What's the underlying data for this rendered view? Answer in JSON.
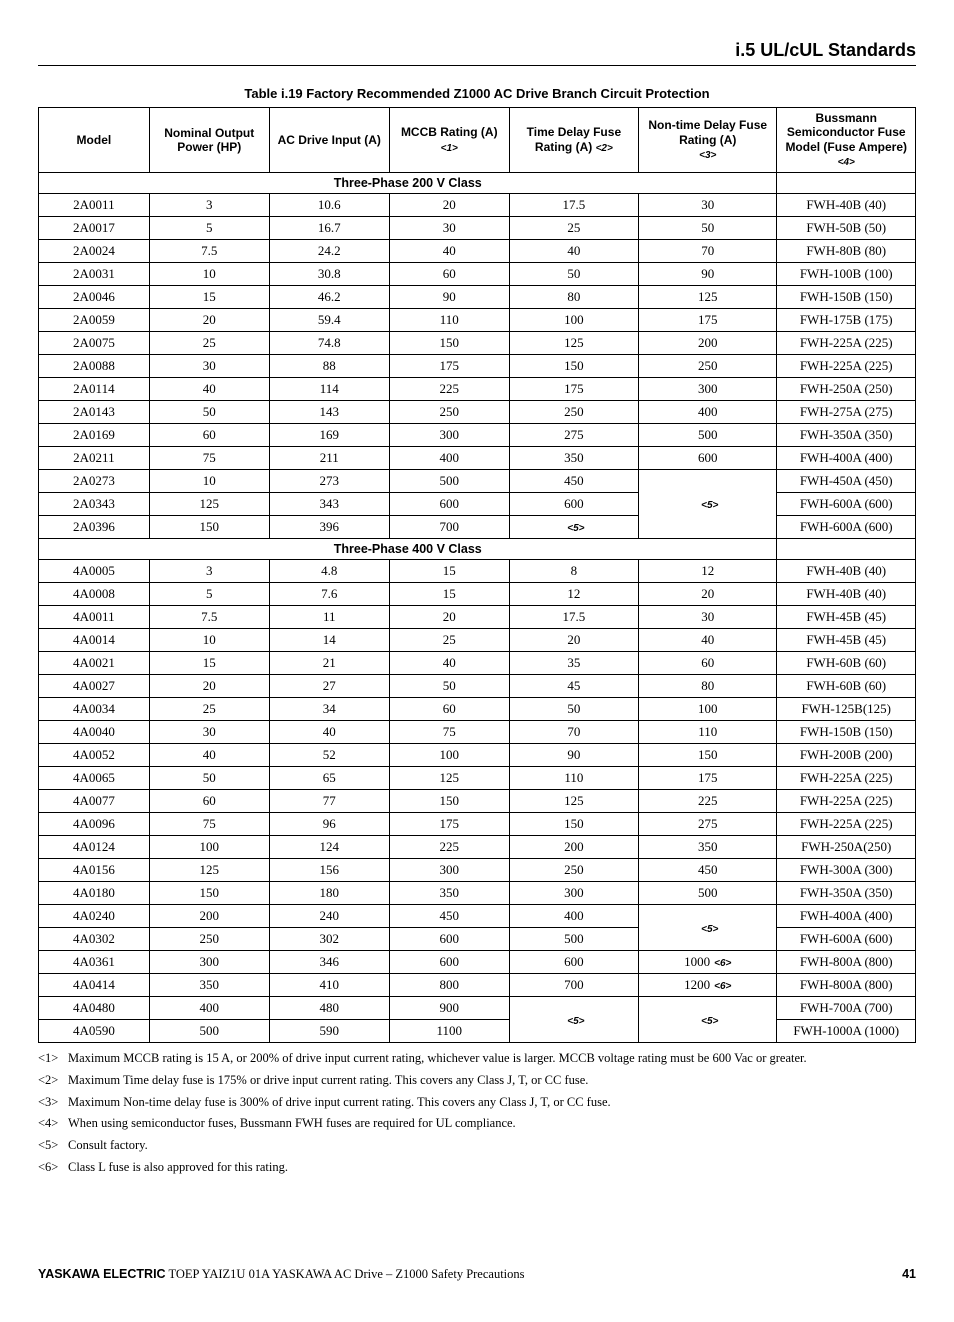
{
  "header": {
    "section": "i.5 UL/cUL Standards"
  },
  "table": {
    "caption": "Table i.19  Factory Recommended Z1000 AC Drive Branch Circuit Protection",
    "columns": {
      "model": "Model",
      "hp": "Nominal Output Power (HP)",
      "drive_input": "AC Drive Input (A)",
      "mccb": "MCCB Rating (A)",
      "mccb_ref": "<1>",
      "td_fuse": "Time Delay Fuse Rating (A)",
      "td_ref": "<2>",
      "ntd_fuse": "Non-time Delay Fuse Rating (A)",
      "ntd_ref": "<3>",
      "sc_fuse": "Bussmann Semiconductor Fuse Model (Fuse Ampere)",
      "sc_ref": "<4>"
    },
    "class_headers": {
      "c200": "Three-Phase 200 V Class",
      "c400": "Three-Phase 400 V Class"
    },
    "refs": {
      "r5": "<5>",
      "r6": "<6>"
    },
    "rows_200": [
      {
        "model": "2A0011",
        "hp": "3",
        "in": "10.6",
        "mccb": "20",
        "td": "17.5",
        "ntd": "30",
        "sc": "FWH-40B (40)"
      },
      {
        "model": "2A0017",
        "hp": "5",
        "in": "16.7",
        "mccb": "30",
        "td": "25",
        "ntd": "50",
        "sc": "FWH-50B (50)"
      },
      {
        "model": "2A0024",
        "hp": "7.5",
        "in": "24.2",
        "mccb": "40",
        "td": "40",
        "ntd": "70",
        "sc": "FWH-80B (80)"
      },
      {
        "model": "2A0031",
        "hp": "10",
        "in": "30.8",
        "mccb": "60",
        "td": "50",
        "ntd": "90",
        "sc": "FWH-100B (100)"
      },
      {
        "model": "2A0046",
        "hp": "15",
        "in": "46.2",
        "mccb": "90",
        "td": "80",
        "ntd": "125",
        "sc": "FWH-150B (150)"
      },
      {
        "model": "2A0059",
        "hp": "20",
        "in": "59.4",
        "mccb": "110",
        "td": "100",
        "ntd": "175",
        "sc": "FWH-175B (175)"
      },
      {
        "model": "2A0075",
        "hp": "25",
        "in": "74.8",
        "mccb": "150",
        "td": "125",
        "ntd": "200",
        "sc": "FWH-225A (225)"
      },
      {
        "model": "2A0088",
        "hp": "30",
        "in": "88",
        "mccb": "175",
        "td": "150",
        "ntd": "250",
        "sc": "FWH-225A (225)"
      },
      {
        "model": "2A0114",
        "hp": "40",
        "in": "114",
        "mccb": "225",
        "td": "175",
        "ntd": "300",
        "sc": "FWH-250A (250)"
      },
      {
        "model": "2A0143",
        "hp": "50",
        "in": "143",
        "mccb": "250",
        "td": "250",
        "ntd": "400",
        "sc": "FWH-275A (275)"
      },
      {
        "model": "2A0169",
        "hp": "60",
        "in": "169",
        "mccb": "300",
        "td": "275",
        "ntd": "500",
        "sc": "FWH-350A (350)"
      },
      {
        "model": "2A0211",
        "hp": "75",
        "in": "211",
        "mccb": "400",
        "td": "350",
        "ntd": "600",
        "sc": "FWH-400A (400)"
      },
      {
        "model": "2A0273",
        "hp": "10",
        "in": "273",
        "mccb": "500",
        "td": "450",
        "ntd": "",
        "sc": "FWH-450A (450)"
      },
      {
        "model": "2A0343",
        "hp": "125",
        "in": "343",
        "mccb": "600",
        "td": "600",
        "ntd": "",
        "sc": "FWH-600A (600)"
      },
      {
        "model": "2A0396",
        "hp": "150",
        "in": "396",
        "mccb": "700",
        "td": "",
        "td_ref": "<5>",
        "ntd": "",
        "sc": "FWH-600A (600)"
      }
    ],
    "rows_400": [
      {
        "model": "4A0005",
        "hp": "3",
        "in": "4.8",
        "mccb": "15",
        "td": "8",
        "ntd": "12",
        "sc": "FWH-40B (40)"
      },
      {
        "model": "4A0008",
        "hp": "5",
        "in": "7.6",
        "mccb": "15",
        "td": "12",
        "ntd": "20",
        "sc": "FWH-40B (40)"
      },
      {
        "model": "4A0011",
        "hp": "7.5",
        "in": "11",
        "mccb": "20",
        "td": "17.5",
        "ntd": "30",
        "sc": "FWH-45B (45)"
      },
      {
        "model": "4A0014",
        "hp": "10",
        "in": "14",
        "mccb": "25",
        "td": "20",
        "ntd": "40",
        "sc": "FWH-45B (45)"
      },
      {
        "model": "4A0021",
        "hp": "15",
        "in": "21",
        "mccb": "40",
        "td": "35",
        "ntd": "60",
        "sc": "FWH-60B (60)"
      },
      {
        "model": "4A0027",
        "hp": "20",
        "in": "27",
        "mccb": "50",
        "td": "45",
        "ntd": "80",
        "sc": "FWH-60B (60)"
      },
      {
        "model": "4A0034",
        "hp": "25",
        "in": "34",
        "mccb": "60",
        "td": "50",
        "ntd": "100",
        "sc": "FWH-125B(125)"
      },
      {
        "model": "4A0040",
        "hp": "30",
        "in": "40",
        "mccb": "75",
        "td": "70",
        "ntd": "110",
        "sc": "FWH-150B (150)"
      },
      {
        "model": "4A0052",
        "hp": "40",
        "in": "52",
        "mccb": "100",
        "td": "90",
        "ntd": "150",
        "sc": "FWH-200B (200)"
      },
      {
        "model": "4A0065",
        "hp": "50",
        "in": "65",
        "mccb": "125",
        "td": "110",
        "ntd": "175",
        "sc": "FWH-225A (225)"
      },
      {
        "model": "4A0077",
        "hp": "60",
        "in": "77",
        "mccb": "150",
        "td": "125",
        "ntd": "225",
        "sc": "FWH-225A (225)"
      },
      {
        "model": "4A0096",
        "hp": "75",
        "in": "96",
        "mccb": "175",
        "td": "150",
        "ntd": "275",
        "sc": "FWH-225A (225)"
      },
      {
        "model": "4A0124",
        "hp": "100",
        "in": "124",
        "mccb": "225",
        "td": "200",
        "ntd": "350",
        "sc": "FWH-250A(250)"
      },
      {
        "model": "4A0156",
        "hp": "125",
        "in": "156",
        "mccb": "300",
        "td": "250",
        "ntd": "450",
        "sc": "FWH-300A (300)"
      },
      {
        "model": "4A0180",
        "hp": "150",
        "in": "180",
        "mccb": "350",
        "td": "300",
        "ntd": "500",
        "sc": "FWH-350A (350)"
      },
      {
        "model": "4A0240",
        "hp": "200",
        "in": "240",
        "mccb": "450",
        "td": "400",
        "ntd": "",
        "sc": "FWH-400A (400)"
      },
      {
        "model": "4A0302",
        "hp": "250",
        "in": "302",
        "mccb": "600",
        "td": "500",
        "ntd": "",
        "sc": "FWH-600A (600)"
      },
      {
        "model": "4A0361",
        "hp": "300",
        "in": "346",
        "mccb": "600",
        "td": "600",
        "ntd": "1000",
        "ntd_ref": "<6>",
        "sc": "FWH-800A (800)"
      },
      {
        "model": "4A0414",
        "hp": "350",
        "in": "410",
        "mccb": "800",
        "td": "700",
        "ntd": "1200",
        "ntd_ref": "<6>",
        "sc": "FWH-800A (800)"
      },
      {
        "model": "4A0480",
        "hp": "400",
        "in": "480",
        "mccb": "900",
        "td": "",
        "td_ref": "<5>",
        "ntd": "",
        "ntd_ref": "<5>",
        "sc": "FWH-700A (700)"
      },
      {
        "model": "4A0590",
        "hp": "500",
        "in": "590",
        "mccb": "1100",
        "td": "",
        "ntd": "",
        "sc": "FWH-1000A (1000)"
      }
    ]
  },
  "notes": [
    {
      "tag": "<1>",
      "text": "Maximum MCCB rating is 15 A, or 200% of drive input current rating, whichever value is larger. MCCB voltage rating must be 600 Vac or greater."
    },
    {
      "tag": "<2>",
      "text": "Maximum Time delay fuse is 175% or drive input current rating. This covers any Class J, T, or CC fuse."
    },
    {
      "tag": "<3>",
      "text": "Maximum Non-time delay fuse is 300% of drive input current rating. This covers any Class J, T, or CC fuse."
    },
    {
      "tag": "<4>",
      "text": "When using semiconductor fuses, Bussmann FWH fuses are required for UL compliance."
    },
    {
      "tag": "<5>",
      "text": "Consult factory."
    },
    {
      "tag": "<6>",
      "text": "Class L fuse is also approved for this rating."
    }
  ],
  "footer": {
    "brand": "YASKAWA ELECTRIC",
    "doc": " TOEP YAIZ1U 01A YASKAWA AC Drive – Z1000 Safety Precautions",
    "page": "41"
  }
}
